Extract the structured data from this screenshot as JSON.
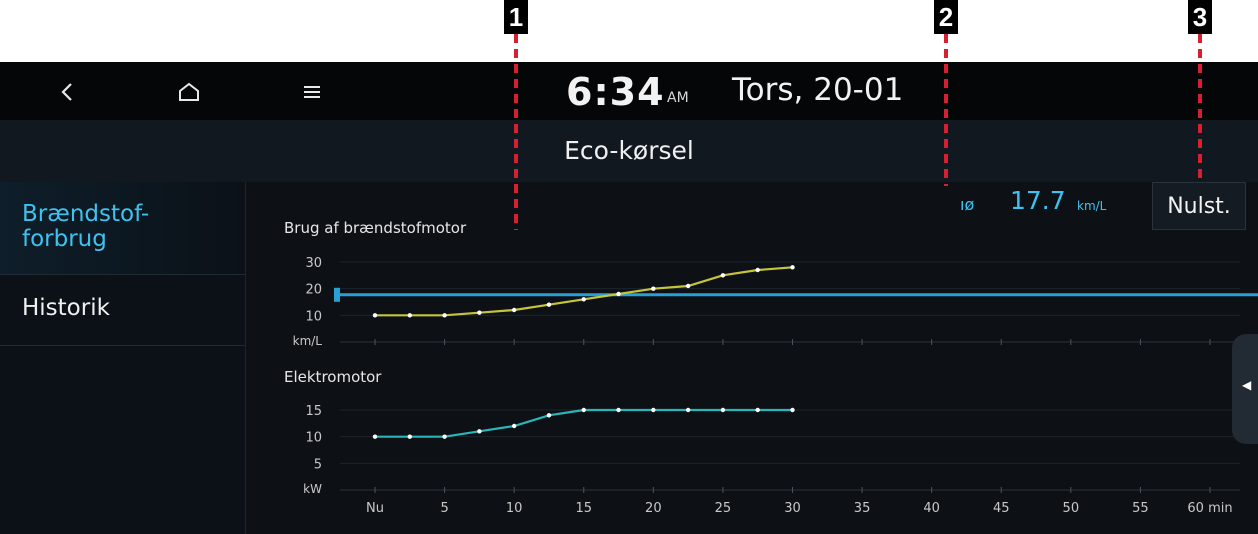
{
  "callouts": [
    "1",
    "2",
    "3"
  ],
  "status": {
    "back_icon": "back-chevron-icon",
    "home_icon": "home-icon",
    "menu_icon": "menu-icon",
    "time": "6:34",
    "ampm": "AM",
    "date": "Tors, 20-01"
  },
  "page_title": "Eco-kørsel",
  "sidebar": {
    "items": [
      {
        "label": "Brændstof-\nforbrug",
        "active": true
      },
      {
        "label": "Historik",
        "active": false
      }
    ]
  },
  "average": {
    "icon_text": "ıø",
    "value": "17.7",
    "unit": "km/L"
  },
  "reset_label": "Nulst.",
  "colors": {
    "accent": "#3ec3f0",
    "fuel_line": "#c8c43a",
    "electric_line": "#2ab5b8",
    "avg_line": "#2a9fd6",
    "callout_marker": "#d62030"
  },
  "chart_data": [
    {
      "type": "line",
      "title": "Brug af brændstofmotor",
      "ylabel": "km/L",
      "yticks": [
        30,
        20,
        10
      ],
      "ylim": [
        0,
        30
      ],
      "x": [
        0,
        2.5,
        5,
        7.5,
        10,
        12.5,
        15,
        17.5,
        20,
        22.5,
        25,
        27.5,
        30
      ],
      "series": [
        {
          "values": [
            10,
            10,
            10,
            11,
            12,
            14,
            16,
            18,
            20,
            21,
            25,
            27,
            28
          ]
        }
      ],
      "reference_value": 17.7
    },
    {
      "type": "line",
      "title": "Elektromotor",
      "ylabel": "kW",
      "yticks": [
        15,
        10,
        5
      ],
      "ylim": [
        0,
        15
      ],
      "x": [
        0,
        2.5,
        5,
        7.5,
        10,
        12.5,
        15,
        17.5,
        20,
        22.5,
        25,
        27.5,
        30
      ],
      "series": [
        {
          "values": [
            10,
            10,
            10,
            11,
            12,
            14,
            15,
            15,
            15,
            15,
            15,
            15,
            15
          ]
        }
      ],
      "xticks": [
        "Nu",
        "5",
        "10",
        "15",
        "20",
        "25",
        "30",
        "35",
        "40",
        "45",
        "50",
        "55",
        "60 min"
      ],
      "xlim": [
        0,
        60
      ]
    }
  ]
}
